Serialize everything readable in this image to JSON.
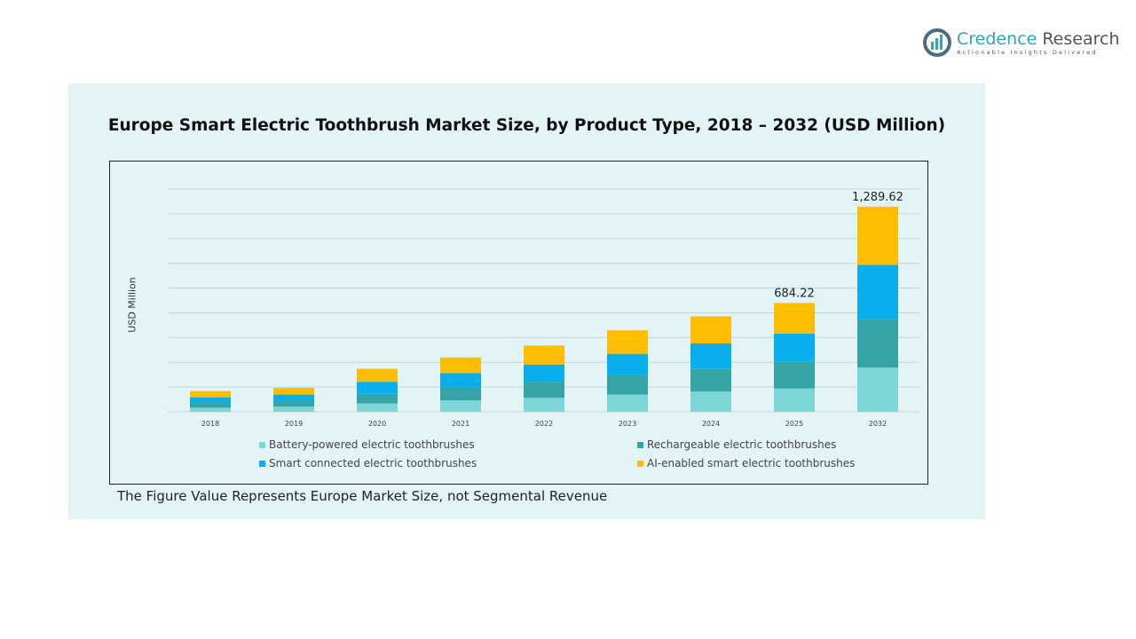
{
  "logo": {
    "name_part1": "Credence",
    "name_part2": "Research",
    "tagline": "Actionable Insights Delivered"
  },
  "footnote": "The Figure Value Represents Europe Market Size, not Segmental Revenue",
  "chart_data": {
    "type": "bar",
    "stacked": true,
    "title": "Europe Smart Electric Toothbrush Market Size, by Product Type, 2018 – 2032 (USD Million)",
    "xlabel": "",
    "ylabel": "USD Million",
    "ylim": [
      0,
      1400
    ],
    "grid": true,
    "legend_placement": "bottom",
    "categories": [
      "2018",
      "2019",
      "2020",
      "2021",
      "2022",
      "2023",
      "2024",
      "2025",
      "2032"
    ],
    "series": [
      {
        "name": "Battery-powered electric toothbrushes",
        "color": "#7dd5d6",
        "values": [
          26.0,
          32.5,
          52.1,
          71.6,
          87.9,
          108.4,
          126.9,
          146.4,
          278.8
        ]
      },
      {
        "name": "Rechargeable electric toothbrushes",
        "color": "#35a4a6",
        "values": [
          29.3,
          36.8,
          64.1,
          82.3,
          100.9,
          123.7,
          142.2,
          166.9,
          306.0
        ]
      },
      {
        "name": "Smart connected electric toothbrushes",
        "color": "#09aeec",
        "values": [
          35.8,
          39.0,
          72.6,
          90.1,
          108.4,
          132.4,
          160.4,
          178.0,
          338.6
        ]
      },
      {
        "name": "AI-enabled smart electric toothbrushes",
        "color": "#fdbd00",
        "values": [
          39.0,
          42.3,
          81.4,
          97.6,
          119.4,
          147.4,
          170.2,
          192.9,
          366.2
        ]
      }
    ],
    "data_labels": [
      {
        "category": "2025",
        "text": "684.22"
      },
      {
        "category": "2032",
        "text": "1,289.62"
      }
    ]
  }
}
